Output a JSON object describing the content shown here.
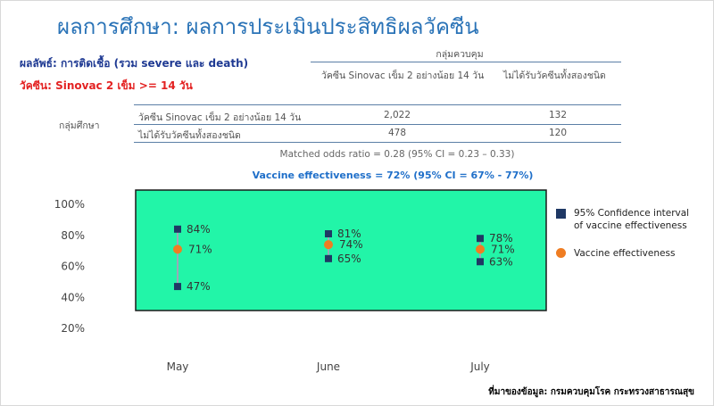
{
  "title": "ผลการศึกษา: ผลการประเมินประสิทธิผลวัคซีน",
  "outcome_label": "ผลลัพธ์: การติดเชื้อ (รวม severe และ death)",
  "vaccine_label": "วัคซีน: Sinovac 2 เข็ม >= 14 วัน",
  "table": {
    "control_group_label": "กลุ่มควบคุม",
    "study_group_label": "กลุ่มศึกษา",
    "col_headers": [
      "วัคซีน Sinovac เข็ม 2 อย่างน้อย 14 วัน",
      "ไม่ได้รับวัคซีนทั้งสองชนิด"
    ],
    "rows": [
      {
        "label": "วัคซีน Sinovac เข็ม 2 อย่างน้อย 14 วัน",
        "values": [
          "2,022",
          "132"
        ]
      },
      {
        "label": "ไม่ได้รับวัคซีนทั้งสองชนิด",
        "values": [
          "478",
          "120"
        ]
      }
    ]
  },
  "odds_ratio": "Matched odds ratio = 0.28 (95% CI = 0.23 – 0.33)",
  "vaccine_effectiveness": "Vaccine effectiveness = 72% (95% CI = 67% - 77%)",
  "chart_data": {
    "type": "scatter",
    "categories": [
      "May",
      "June",
      "July"
    ],
    "series": [
      {
        "name": "Vaccine effectiveness",
        "values": [
          71,
          74,
          71
        ],
        "labels": [
          "71%",
          "74%",
          "71%"
        ]
      },
      {
        "name": "95% Confidence interval of vaccine effectiveness",
        "upper": [
          84,
          81,
          78
        ],
        "lower": [
          47,
          65,
          63
        ],
        "upper_labels": [
          "84%",
          "81%",
          "78%"
        ],
        "lower_labels": [
          "47%",
          "65%",
          "63%"
        ]
      }
    ],
    "y_ticks": [
      "100%",
      "80%",
      "60%",
      "40%",
      "20%"
    ],
    "y_tick_values": [
      100,
      80,
      60,
      40,
      20
    ],
    "ylim": [
      20,
      100
    ],
    "colors": {
      "plot_background": "#22f5a8",
      "ci_marker": "#1f3864",
      "ve_marker": "#ef7d22",
      "ci_line": "#9aa9b8"
    },
    "legend_position": "right"
  },
  "legend": {
    "ci_line1": "95% Confidence interval",
    "ci_line2": "of vaccine effectiveness",
    "ve": "Vaccine effectiveness"
  },
  "source": "ที่มาของข้อมูล: กรมควบคุมโรค กระทรวงสาธารณสุข"
}
